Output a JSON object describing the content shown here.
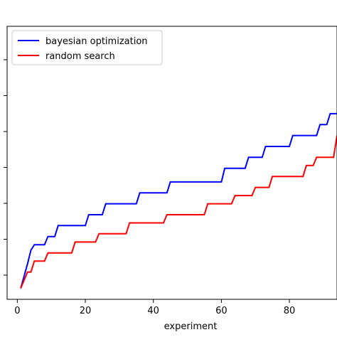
{
  "chart_data": {
    "type": "line",
    "xlabel": "experiment",
    "ylabel": "",
    "title": "",
    "xlim": [
      -3,
      94
    ],
    "ylim": [
      0,
      100
    ],
    "xticks": [
      0,
      20,
      40,
      60,
      80
    ],
    "yticks_count": 7,
    "grid": false,
    "legend_position": "upper-left",
    "series": [
      {
        "name": "bayesian optimization",
        "color": "#0000ff",
        "points": [
          [
            1,
            4
          ],
          [
            3,
            13
          ],
          [
            4,
            18
          ],
          [
            5,
            20
          ],
          [
            8,
            20
          ],
          [
            9,
            23
          ],
          [
            11,
            23
          ],
          [
            12,
            27
          ],
          [
            20,
            27
          ],
          [
            21,
            31
          ],
          [
            25,
            31
          ],
          [
            26,
            35
          ],
          [
            35,
            35
          ],
          [
            36,
            39
          ],
          [
            44,
            39
          ],
          [
            45,
            43
          ],
          [
            60,
            43
          ],
          [
            61,
            48
          ],
          [
            67,
            48
          ],
          [
            68,
            52
          ],
          [
            72,
            52
          ],
          [
            73,
            56
          ],
          [
            80,
            56
          ],
          [
            81,
            60
          ],
          [
            88,
            60
          ],
          [
            89,
            64
          ],
          [
            91,
            64
          ],
          [
            92,
            68
          ],
          [
            94,
            68
          ]
        ]
      },
      {
        "name": "random search",
        "color": "#ff0000",
        "points": [
          [
            1,
            4
          ],
          [
            3,
            10
          ],
          [
            4,
            10
          ],
          [
            5,
            14
          ],
          [
            8,
            14
          ],
          [
            9,
            17
          ],
          [
            16,
            17
          ],
          [
            17,
            21
          ],
          [
            23,
            21
          ],
          [
            24,
            24
          ],
          [
            32,
            24
          ],
          [
            33,
            28
          ],
          [
            43,
            28
          ],
          [
            44,
            31
          ],
          [
            55,
            31
          ],
          [
            56,
            35
          ],
          [
            63,
            35
          ],
          [
            64,
            38
          ],
          [
            69,
            38
          ],
          [
            70,
            41
          ],
          [
            74,
            41
          ],
          [
            75,
            45
          ],
          [
            84,
            45
          ],
          [
            85,
            49
          ],
          [
            87,
            49
          ],
          [
            88,
            52
          ],
          [
            93,
            52
          ],
          [
            94,
            60
          ]
        ]
      }
    ]
  }
}
